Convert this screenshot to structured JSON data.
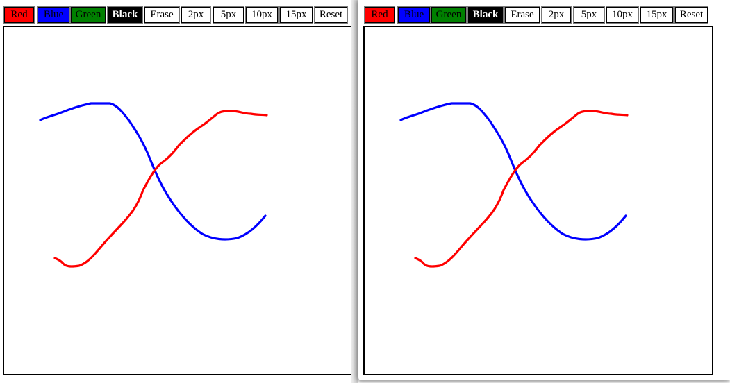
{
  "toolbar": {
    "buttons": [
      {
        "id": "red",
        "label": "Red",
        "bg": "#ff0000",
        "fg": "#000000"
      },
      {
        "id": "blue",
        "label": "Blue",
        "bg": "#0000ff",
        "fg": "#000000"
      },
      {
        "id": "green",
        "label": "Green",
        "bg": "#008000",
        "fg": "#000000"
      },
      {
        "id": "black",
        "label": "Black",
        "bg": "#000000",
        "fg": "#ffffff",
        "bold": true
      },
      {
        "id": "erase",
        "label": "Erase",
        "bg": "#ffffff",
        "fg": "#000000"
      },
      {
        "id": "2px",
        "label": "2px",
        "bg": "#ffffff",
        "fg": "#000000"
      },
      {
        "id": "5px",
        "label": "5px",
        "bg": "#ffffff",
        "fg": "#000000"
      },
      {
        "id": "10px",
        "label": "10px",
        "bg": "#ffffff",
        "fg": "#000000"
      },
      {
        "id": "15px",
        "label": "15px",
        "bg": "#ffffff",
        "fg": "#000000"
      },
      {
        "id": "reset",
        "label": "Reset",
        "bg": "#ffffff",
        "fg": "#000000"
      }
    ]
  },
  "strokes": [
    {
      "name": "blue-stroke",
      "color": "#0000ff"
    },
    {
      "name": "red-stroke",
      "color": "#ff0000"
    }
  ]
}
